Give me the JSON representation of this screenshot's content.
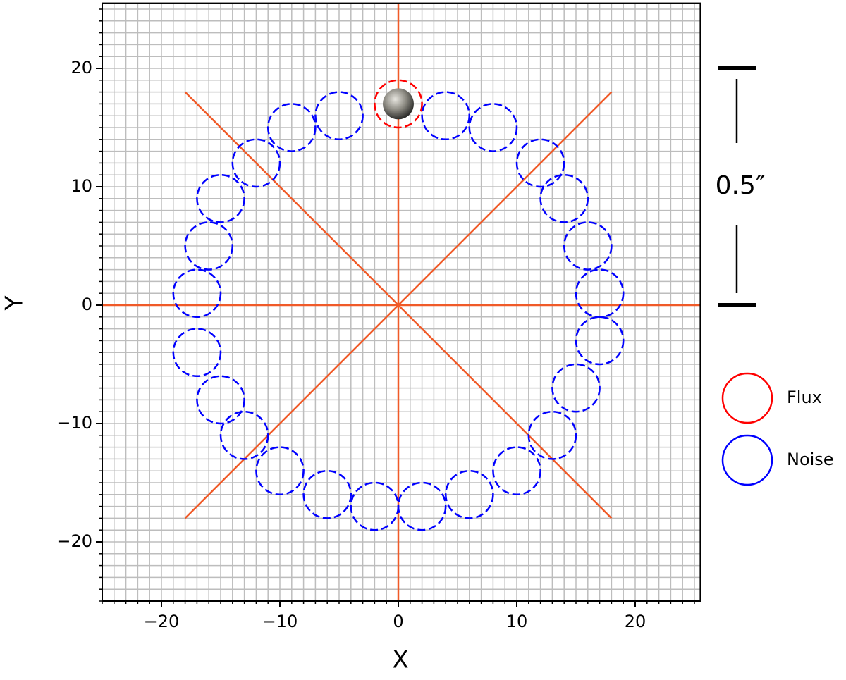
{
  "chart_data": {
    "type": "scatter",
    "x_label": "X",
    "y_label": "Y",
    "xlim": [
      -25,
      25.5
    ],
    "ylim": [
      -25,
      25.5
    ],
    "xticks": [
      {
        "value": -20,
        "label": "−20"
      },
      {
        "value": -10,
        "label": "−10"
      },
      0,
      10,
      20
    ],
    "yticks": [
      {
        "value": -20,
        "label": "−20"
      },
      {
        "value": -10,
        "label": "−10"
      },
      0,
      10,
      20
    ],
    "grid": true,
    "series": [
      {
        "name": "Flux",
        "color": "#ff0000",
        "radius": 2,
        "x": [
          0
        ],
        "y": [
          17
        ]
      },
      {
        "name": "Noise",
        "color": "#0000ff",
        "radius": 2,
        "x": [
          -5,
          -9,
          -12,
          -15,
          -16,
          -17,
          -17,
          -15,
          -13,
          -10,
          -6,
          -2,
          2,
          6,
          10,
          13,
          15,
          17,
          17,
          16,
          14,
          12,
          8,
          4
        ],
        "y": [
          16,
          15,
          12,
          9,
          5,
          1,
          -4,
          -8,
          -11,
          -14,
          -16,
          -17,
          -17,
          -16,
          -14,
          -11,
          -7,
          -3,
          1,
          5,
          9,
          12,
          15,
          16
        ]
      }
    ],
    "reference_lines": {
      "color": "#f05a28",
      "lines": [
        {
          "x": [
            0,
            0
          ],
          "y": [
            -25,
            25.5
          ]
        },
        {
          "x": [
            -25,
            25.5
          ],
          "y": [
            0,
            0
          ]
        },
        {
          "x": [
            -18,
            18
          ],
          "y": [
            18,
            -18
          ]
        },
        {
          "x": [
            -18,
            18
          ],
          "y": [
            -18,
            18
          ]
        }
      ]
    },
    "scale_bar": {
      "label": "0.5″",
      "y": [
        0,
        20
      ]
    }
  }
}
